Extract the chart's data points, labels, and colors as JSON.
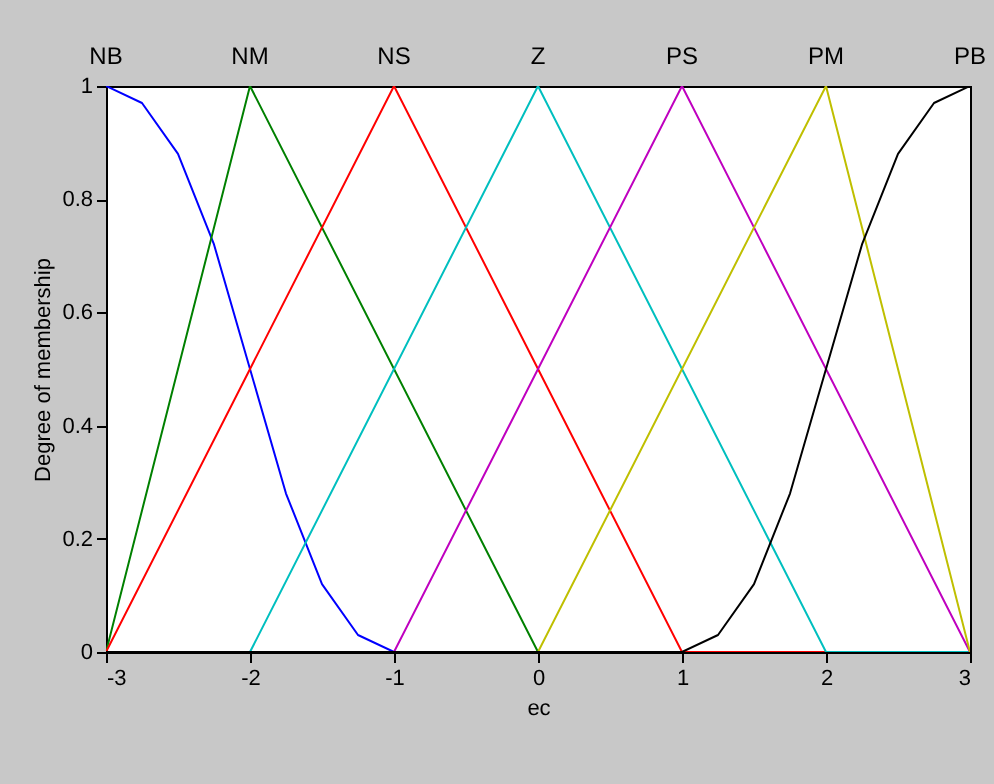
{
  "chart_data": {
    "type": "line",
    "xlabel": "ec",
    "ylabel": "Degree of membership",
    "xlim": [
      -3,
      3
    ],
    "ylim": [
      0,
      1
    ],
    "xticks": [
      -3,
      -2,
      -1,
      0,
      1,
      2,
      3
    ],
    "yticks": [
      0,
      0.2,
      0.4,
      0.6,
      0.8,
      1
    ],
    "grid": false,
    "annotations": [
      {
        "text": "NB",
        "x": -3,
        "y": 1
      },
      {
        "text": "NM",
        "x": -2,
        "y": 1
      },
      {
        "text": "NS",
        "x": -1,
        "y": 1
      },
      {
        "text": "Z",
        "x": 0,
        "y": 1
      },
      {
        "text": "PS",
        "x": 1,
        "y": 1
      },
      {
        "text": "PM",
        "x": 2,
        "y": 1
      },
      {
        "text": "PB",
        "x": 3,
        "y": 1
      }
    ],
    "series": [
      {
        "color": "#0000ff",
        "x": [
          -3,
          -2.75,
          -2.5,
          -2.25,
          -2,
          -1.75,
          -1.5,
          -1.25,
          -1,
          3
        ],
        "values": [
          1,
          0.97,
          0.88,
          0.72,
          0.5,
          0.28,
          0.12,
          0.03,
          0,
          0
        ]
      },
      {
        "color": "#008000",
        "x": [
          -3,
          -2,
          0,
          3
        ],
        "values": [
          0,
          1,
          0,
          0
        ]
      },
      {
        "color": "#ff0000",
        "x": [
          -3,
          -1,
          1,
          3
        ],
        "values": [
          0,
          1,
          0,
          0
        ]
      },
      {
        "color": "#00bfbf",
        "x": [
          -3,
          -2,
          0,
          2,
          3
        ],
        "values": [
          0,
          0,
          1,
          0,
          0
        ]
      },
      {
        "color": "#bf00bf",
        "x": [
          -3,
          -1,
          1,
          3
        ],
        "values": [
          0,
          0,
          1,
          0
        ]
      },
      {
        "color": "#bfbf00",
        "x": [
          -3,
          0,
          2,
          3
        ],
        "values": [
          0,
          0,
          1,
          0
        ]
      },
      {
        "color": "#000000",
        "x": [
          -3,
          1,
          1.25,
          1.5,
          1.75,
          2,
          2.25,
          2.5,
          2.75,
          3
        ],
        "values": [
          0,
          0,
          0.03,
          0.12,
          0.28,
          0.5,
          0.72,
          0.88,
          0.97,
          1
        ]
      }
    ]
  }
}
